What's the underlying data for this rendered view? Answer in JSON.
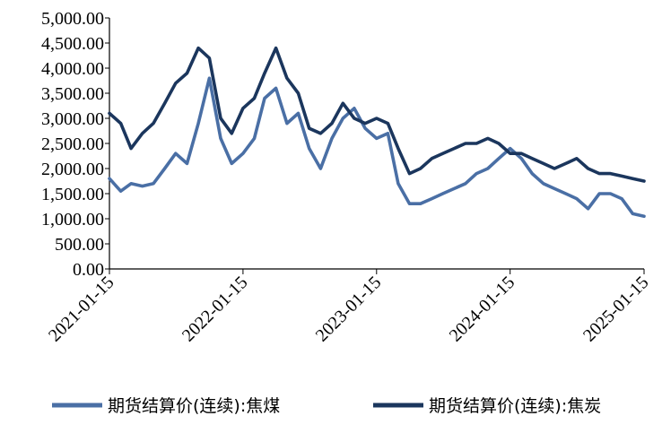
{
  "chart_data": {
    "type": "line",
    "title": "",
    "xlabel": "",
    "ylabel": "",
    "ylim": [
      0,
      5000
    ],
    "y_ticks": [
      "0.00",
      "500.00",
      "1,000.00",
      "1,500.00",
      "2,000.00",
      "2,500.00",
      "3,000.00",
      "3,500.00",
      "4,000.00",
      "4,500.00",
      "5,000.00"
    ],
    "x_ticks": [
      "2021-01-15",
      "2022-01-15",
      "2023-01-15",
      "2024-01-15",
      "2025-01-15"
    ],
    "grid": false,
    "legend_position": "bottom",
    "x": [
      "2021-01-15",
      "2021-02-15",
      "2021-03-15",
      "2021-04-15",
      "2021-05-15",
      "2021-06-15",
      "2021-07-15",
      "2021-08-15",
      "2021-09-15",
      "2021-10-15",
      "2021-11-15",
      "2021-12-15",
      "2022-01-15",
      "2022-02-15",
      "2022-03-15",
      "2022-04-15",
      "2022-05-15",
      "2022-06-15",
      "2022-07-15",
      "2022-08-15",
      "2022-09-15",
      "2022-10-15",
      "2022-11-15",
      "2022-12-15",
      "2023-01-15",
      "2023-02-15",
      "2023-03-15",
      "2023-04-15",
      "2023-05-15",
      "2023-06-15",
      "2023-07-15",
      "2023-08-15",
      "2023-09-15",
      "2023-10-15",
      "2023-11-15",
      "2023-12-15",
      "2024-01-15",
      "2024-02-15",
      "2024-03-15",
      "2024-04-15",
      "2024-05-15",
      "2024-06-15",
      "2024-07-15",
      "2024-08-15",
      "2024-09-15",
      "2024-10-15",
      "2024-11-15",
      "2024-12-15",
      "2025-01-15"
    ],
    "series": [
      {
        "name": "期货结算价(连续):焦煤",
        "color": "#4a6fa5",
        "values": [
          1800,
          1550,
          1700,
          1650,
          1700,
          2000,
          2300,
          2100,
          2900,
          3800,
          2600,
          2100,
          2300,
          2600,
          3400,
          3600,
          2900,
          3100,
          2400,
          2000,
          2600,
          3000,
          3200,
          2800,
          2600,
          2700,
          1700,
          1300,
          1300,
          1400,
          1500,
          1600,
          1700,
          1900,
          2000,
          2200,
          2400,
          2200,
          1900,
          1700,
          1600,
          1500,
          1400,
          1200,
          1500,
          1500,
          1400,
          1100,
          1050
        ]
      },
      {
        "name": "期货结算价(连续):焦炭",
        "color": "#1b365d",
        "values": [
          3100,
          2900,
          2400,
          2700,
          2900,
          3300,
          3700,
          3900,
          4400,
          4200,
          3000,
          2700,
          3200,
          3400,
          3900,
          4400,
          3800,
          3500,
          2800,
          2700,
          2900,
          3300,
          3000,
          2900,
          3000,
          2900,
          2400,
          1900,
          2000,
          2200,
          2300,
          2400,
          2500,
          2500,
          2600,
          2500,
          2300,
          2300,
          2200,
          2100,
          2000,
          2100,
          2200,
          2000,
          1900,
          1900,
          1850,
          1800,
          1750
        ]
      }
    ]
  }
}
